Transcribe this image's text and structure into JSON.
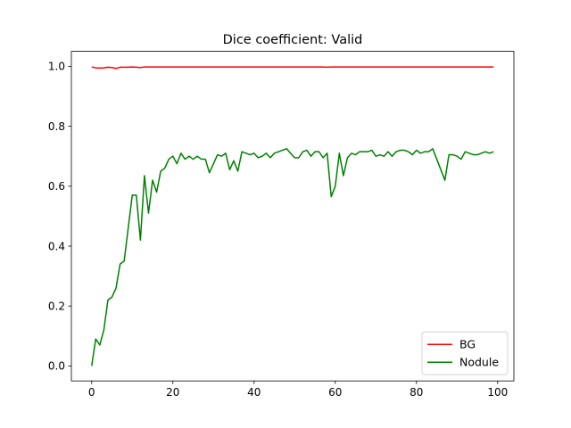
{
  "chart_data": {
    "type": "line",
    "title": "Dice coefficient: Valid",
    "xlabel": "",
    "ylabel": "",
    "xlim": [
      -5,
      104
    ],
    "ylim": [
      -0.05,
      1.05
    ],
    "xticks": [
      0,
      20,
      40,
      60,
      80,
      100
    ],
    "xtick_labels": [
      "0",
      "20",
      "40",
      "60",
      "80",
      "100"
    ],
    "yticks": [
      0.0,
      0.2,
      0.4,
      0.6,
      0.8,
      1.0
    ],
    "ytick_labels": [
      "0.0",
      "0.2",
      "0.4",
      "0.6",
      "0.8",
      "1.0"
    ],
    "grid": false,
    "legend_position": "lower-right",
    "x": [
      0,
      1,
      2,
      3,
      4,
      5,
      6,
      7,
      8,
      9,
      10,
      11,
      12,
      13,
      14,
      15,
      16,
      17,
      18,
      19,
      20,
      21,
      22,
      23,
      24,
      25,
      26,
      27,
      28,
      29,
      30,
      31,
      32,
      33,
      34,
      35,
      36,
      37,
      38,
      39,
      40,
      41,
      42,
      43,
      44,
      45,
      46,
      47,
      48,
      49,
      50,
      51,
      52,
      53,
      54,
      55,
      56,
      57,
      58,
      59,
      60,
      61,
      62,
      63,
      64,
      65,
      66,
      67,
      68,
      69,
      70,
      71,
      72,
      73,
      74,
      75,
      76,
      77,
      78,
      79,
      80,
      81,
      82,
      83,
      84,
      85,
      86,
      87,
      88,
      89,
      90,
      91,
      92,
      93,
      94,
      95,
      96,
      97,
      98,
      99
    ],
    "series": [
      {
        "name": "BG",
        "color": "#ff0000",
        "values": [
          0.998,
          0.995,
          0.994,
          0.995,
          0.997,
          0.996,
          0.993,
          0.997,
          0.997,
          0.997,
          0.998,
          0.997,
          0.996,
          0.998,
          0.998,
          0.998,
          0.998,
          0.998,
          0.998,
          0.998,
          0.998,
          0.998,
          0.998,
          0.998,
          0.998,
          0.998,
          0.998,
          0.998,
          0.998,
          0.998,
          0.998,
          0.998,
          0.998,
          0.998,
          0.998,
          0.998,
          0.998,
          0.998,
          0.998,
          0.998,
          0.998,
          0.998,
          0.998,
          0.998,
          0.998,
          0.998,
          0.998,
          0.998,
          0.998,
          0.998,
          0.998,
          0.998,
          0.998,
          0.998,
          0.998,
          0.998,
          0.998,
          0.998,
          0.997,
          0.998,
          0.998,
          0.998,
          0.998,
          0.998,
          0.998,
          0.998,
          0.998,
          0.998,
          0.998,
          0.998,
          0.998,
          0.998,
          0.998,
          0.998,
          0.998,
          0.998,
          0.998,
          0.998,
          0.998,
          0.998,
          0.998,
          0.998,
          0.998,
          0.998,
          0.998,
          0.998,
          0.998,
          0.998,
          0.998,
          0.998,
          0.998,
          0.998,
          0.998,
          0.998,
          0.998,
          0.998,
          0.998,
          0.998,
          0.998,
          0.998
        ]
      },
      {
        "name": "Nodule",
        "color": "#008000",
        "values": [
          0.0,
          0.09,
          0.07,
          0.12,
          0.22,
          0.23,
          0.26,
          0.34,
          0.35,
          0.46,
          0.57,
          0.57,
          0.42,
          0.635,
          0.51,
          0.62,
          0.58,
          0.65,
          0.66,
          0.69,
          0.7,
          0.675,
          0.71,
          0.69,
          0.7,
          0.69,
          0.7,
          0.69,
          0.69,
          0.645,
          0.675,
          0.705,
          0.7,
          0.71,
          0.655,
          0.685,
          0.65,
          0.715,
          0.71,
          0.705,
          0.71,
          0.695,
          0.7,
          0.71,
          0.695,
          0.71,
          0.715,
          0.72,
          0.725,
          0.71,
          0.695,
          0.695,
          0.715,
          0.72,
          0.7,
          0.715,
          0.715,
          0.695,
          0.71,
          0.565,
          0.6,
          0.71,
          0.635,
          0.695,
          0.71,
          0.705,
          0.715,
          0.715,
          0.715,
          0.72,
          0.7,
          0.705,
          0.7,
          0.715,
          0.7,
          0.715,
          0.72,
          0.72,
          0.715,
          0.705,
          0.72,
          0.71,
          0.715,
          0.715,
          0.725,
          0.69,
          0.655,
          0.62,
          0.705,
          0.705,
          0.7,
          0.69,
          0.715,
          0.71,
          0.705,
          0.705,
          0.71,
          0.715,
          0.71,
          0.715
        ]
      }
    ]
  }
}
